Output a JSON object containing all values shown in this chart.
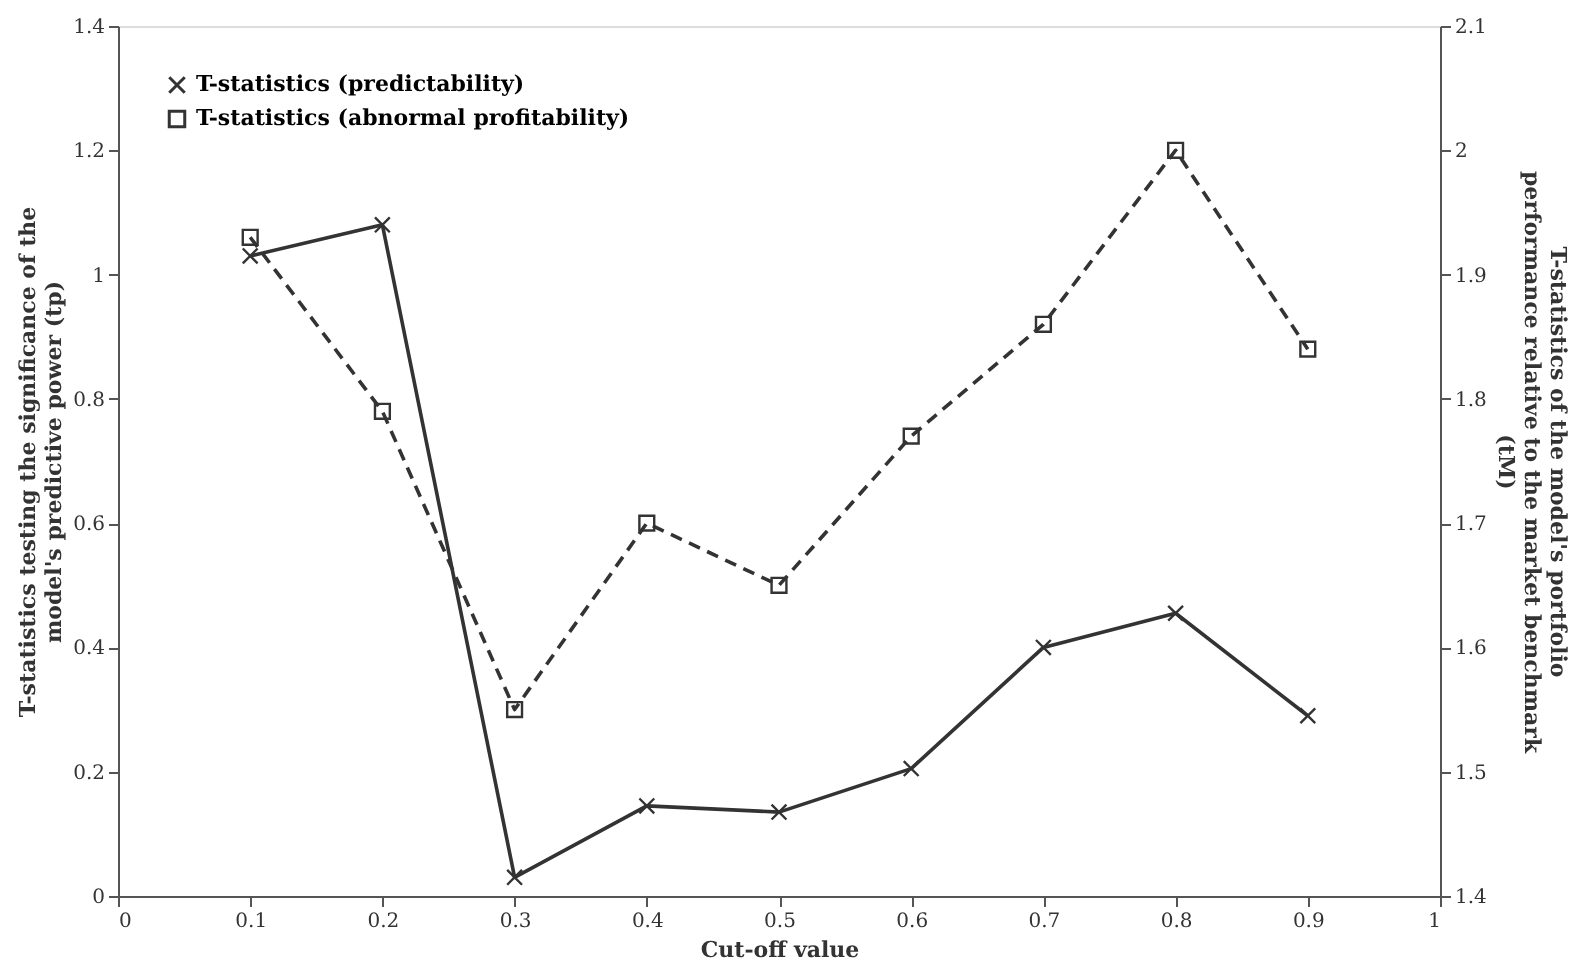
{
  "chart_data": {
    "type": "line",
    "xlabel": "Cut-off value",
    "ylabel": "T-statistics testing the significance of the model's predictive power (tp)",
    "y2label": "T-statistics of the model's portfolio performance relative to the market benchmark (tM)",
    "x": [
      0.1,
      0.2,
      0.3,
      0.4,
      0.5,
      0.6,
      0.7,
      0.8,
      0.9
    ],
    "series": [
      {
        "name": "T-statistics (predictability)",
        "color": "#333333",
        "marker": "cross",
        "line_style": "solid",
        "values": [
          1.03,
          1.08,
          0.03,
          0.145,
          0.135,
          0.205,
          0.4,
          0.455,
          0.29
        ]
      },
      {
        "name": "T-statistics (abnormal profitability)",
        "color": "#333333",
        "marker": "square",
        "line_style": "dashed",
        "axis": "y2",
        "values": [
          1.93,
          1.79,
          1.55,
          1.7,
          1.65,
          1.77,
          1.86,
          2.0,
          1.84
        ]
      }
    ],
    "xlim": [
      0,
      1
    ],
    "xticks": [
      0,
      0.1,
      0.2,
      0.3,
      0.4,
      0.5,
      0.6,
      0.7,
      0.8,
      0.9,
      1
    ],
    "ylim": [
      0,
      1.4
    ],
    "yticks": [
      0,
      0.2,
      0.4,
      0.6,
      0.8,
      1,
      1.2,
      1.4
    ],
    "y2lim": [
      1.4,
      2.1
    ],
    "y2ticks": [
      1.4,
      1.5,
      1.6,
      1.7,
      1.8,
      1.9,
      2,
      2.1
    ],
    "grid": false,
    "legend": "top left"
  }
}
